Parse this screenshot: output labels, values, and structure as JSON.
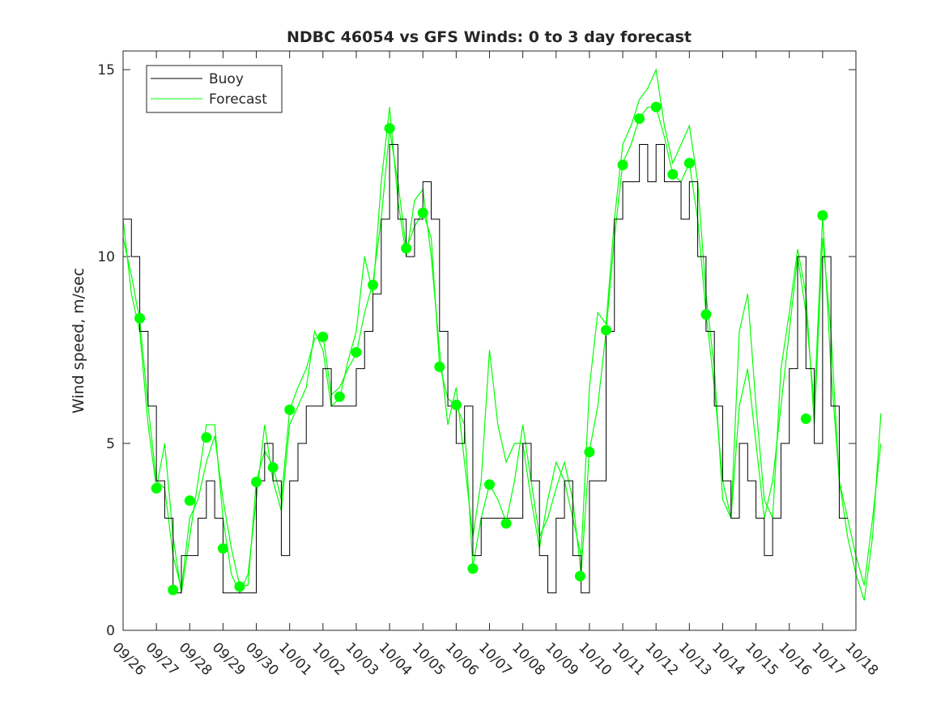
{
  "chart_data": {
    "type": "line",
    "title": "NDBC 46054 vs GFS Winds: 0 to 3 day forecast",
    "xlabel": "",
    "ylabel": "Wind speed, m/sec",
    "xlim": [
      0,
      22
    ],
    "ylim": [
      0,
      15.5
    ],
    "x_units": "days since 09/26",
    "x_tick_labels": [
      "09/26",
      "09/27",
      "09/28",
      "09/29",
      "09/30",
      "10/01",
      "10/02",
      "10/03",
      "10/04",
      "10/05",
      "10/06",
      "10/07",
      "10/08",
      "10/09",
      "10/10",
      "10/11",
      "10/12",
      "10/13",
      "10/14",
      "10/15",
      "10/16",
      "10/17",
      "10/18"
    ],
    "y_ticks": [
      0,
      5,
      10,
      15
    ],
    "grid": false,
    "legend": {
      "placement": "top-left",
      "entries": [
        "Buoy",
        "Forecast"
      ]
    },
    "colors": {
      "buoy": "#000000",
      "forecast": "#00ff00"
    },
    "buoy": {
      "name": "Buoy",
      "step": 0.25,
      "values": [
        11,
        10,
        8,
        6,
        4,
        3,
        1,
        2,
        2,
        3,
        4,
        3,
        1,
        1,
        1,
        1,
        4,
        5,
        4,
        2,
        4,
        5,
        6,
        6,
        7,
        6,
        6,
        6,
        7,
        8,
        9,
        11,
        13,
        11,
        10,
        11,
        12,
        11,
        8,
        6,
        5,
        6,
        2,
        3,
        3,
        3,
        3,
        3,
        5,
        4,
        2,
        1,
        3,
        4,
        2,
        1,
        4,
        4,
        8,
        11,
        12,
        12,
        13,
        12,
        13,
        12,
        12,
        11,
        12,
        10,
        8,
        6,
        4,
        3,
        5,
        4,
        3,
        2,
        3,
        5,
        7,
        10,
        7,
        5,
        10,
        6,
        3
      ]
    },
    "forecast_series": [
      {
        "name": "Forecast",
        "step": 0.25,
        "values": [
          10.5,
          9.5,
          8.3,
          6,
          4,
          3.8,
          2,
          1.1,
          3,
          3.5,
          4.5,
          5.2,
          3.5,
          2.2,
          1.2,
          1.2,
          4,
          4.8,
          4.4,
          3.5,
          5.9,
          6.5,
          7,
          7.8,
          7.9,
          6.3,
          6.5,
          7,
          7.4,
          8.5,
          9.3,
          11,
          13.4,
          12,
          10.2,
          10.8,
          11.2,
          10.5,
          7.1,
          6.2,
          6,
          5.5,
          1.7,
          3,
          3.9,
          3.5,
          2.9,
          4,
          5.5,
          4,
          2.5,
          3,
          3.8,
          4.5,
          3.5,
          1.5,
          4.8,
          6,
          8,
          10.5,
          12.5,
          13,
          13.7,
          14,
          14,
          13.2,
          12.2,
          12,
          12.5,
          11,
          8.5,
          6.5,
          4,
          3,
          6,
          7,
          5,
          3,
          4,
          6,
          8,
          10,
          8.5,
          6,
          11.1,
          7,
          4,
          2.5,
          1.5,
          0.8,
          2.5,
          5.8
        ]
      },
      {
        "name": "Forecast",
        "step": 0.25,
        "values": [
          11,
          9,
          8,
          5.5,
          3.8,
          5,
          2.5,
          1,
          2.5,
          4,
          5.5,
          5.5,
          3,
          1.5,
          1,
          1.5,
          3.5,
          5.5,
          4,
          3.2,
          5.5,
          6,
          6.5,
          8,
          7.5,
          6,
          6.2,
          7.2,
          8,
          10,
          9,
          12,
          14,
          11.5,
          10,
          11.5,
          11.8,
          10,
          7.5,
          5.5,
          6.5,
          4.5,
          2.5,
          4,
          7.5,
          5.5,
          4.5,
          5,
          5,
          3.5,
          2.2,
          3.5,
          4.5,
          4,
          3,
          2,
          6.5,
          8.5,
          8.2,
          11,
          13,
          13.5,
          14.2,
          14.5,
          15,
          13.5,
          12.5,
          13,
          13.5,
          12,
          9,
          7,
          3.5,
          3,
          8,
          9,
          6,
          3.5,
          3,
          7,
          8.5,
          10.2,
          9,
          5.5,
          10.5,
          8,
          4,
          3,
          2,
          1.2,
          3,
          5
        ]
      }
    ],
    "forecast_points": {
      "x": [
        0.5,
        1.0,
        1.5,
        2.0,
        2.5,
        3.0,
        3.5,
        4.0,
        4.5,
        5.0,
        6.0,
        6.5,
        7.0,
        7.5,
        8.0,
        8.5,
        9.0,
        9.5,
        10.0,
        10.5,
        11.0,
        11.5,
        13.72,
        14.0,
        14.5,
        15.0,
        15.5,
        16.0,
        16.5,
        17.0,
        17.5,
        20.5,
        21.0
      ],
      "y": [
        8.35,
        3.8,
        1.08,
        3.47,
        5.16,
        2.19,
        1.17,
        3.97,
        4.36,
        5.9,
        7.85,
        6.25,
        7.44,
        9.24,
        13.43,
        10.22,
        11.17,
        7.05,
        6.03,
        1.65,
        3.9,
        2.86,
        1.45,
        4.77,
        8.03,
        12.45,
        13.69,
        14.0,
        12.2,
        12.5,
        8.45,
        5.66,
        11.1
      ]
    }
  }
}
